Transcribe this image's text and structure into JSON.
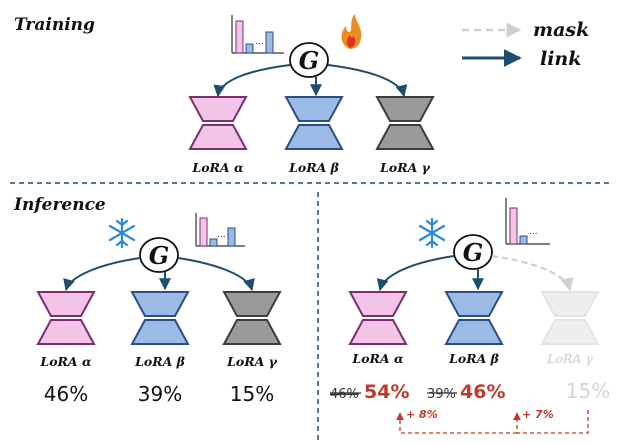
{
  "sections": {
    "training": "Training",
    "inference": "Inference"
  },
  "legend": {
    "mask": "mask",
    "link": "link"
  },
  "node_label": "G",
  "lora_labels": {
    "alpha": "LoRA α",
    "beta": "LoRA β",
    "gamma": "LoRA γ"
  },
  "chart_dots": "...",
  "inference_left": {
    "alpha": "46%",
    "beta": "39%",
    "gamma": "15%"
  },
  "inference_right": {
    "alpha_old": "46%",
    "alpha_new": "54%",
    "beta_old": "39%",
    "beta_new": "46%",
    "gamma": "15%",
    "gain_alpha": "+ 8%",
    "gain_beta": "+ 7%"
  },
  "colors": {
    "pink_fill": "#f2c4e8",
    "pink_stroke": "#7a2f6e",
    "blue_fill": "#9bbbe6",
    "blue_stroke": "#2c4e86",
    "gray_fill": "#9a9a9a",
    "gray_stroke": "#3c3c3c",
    "faded_fill": "#eeeeee",
    "faded_stroke": "#e4e4e4",
    "arrow": "#1e4e6e",
    "mask": "#cfcfcf",
    "gain": "#c0392b"
  }
}
